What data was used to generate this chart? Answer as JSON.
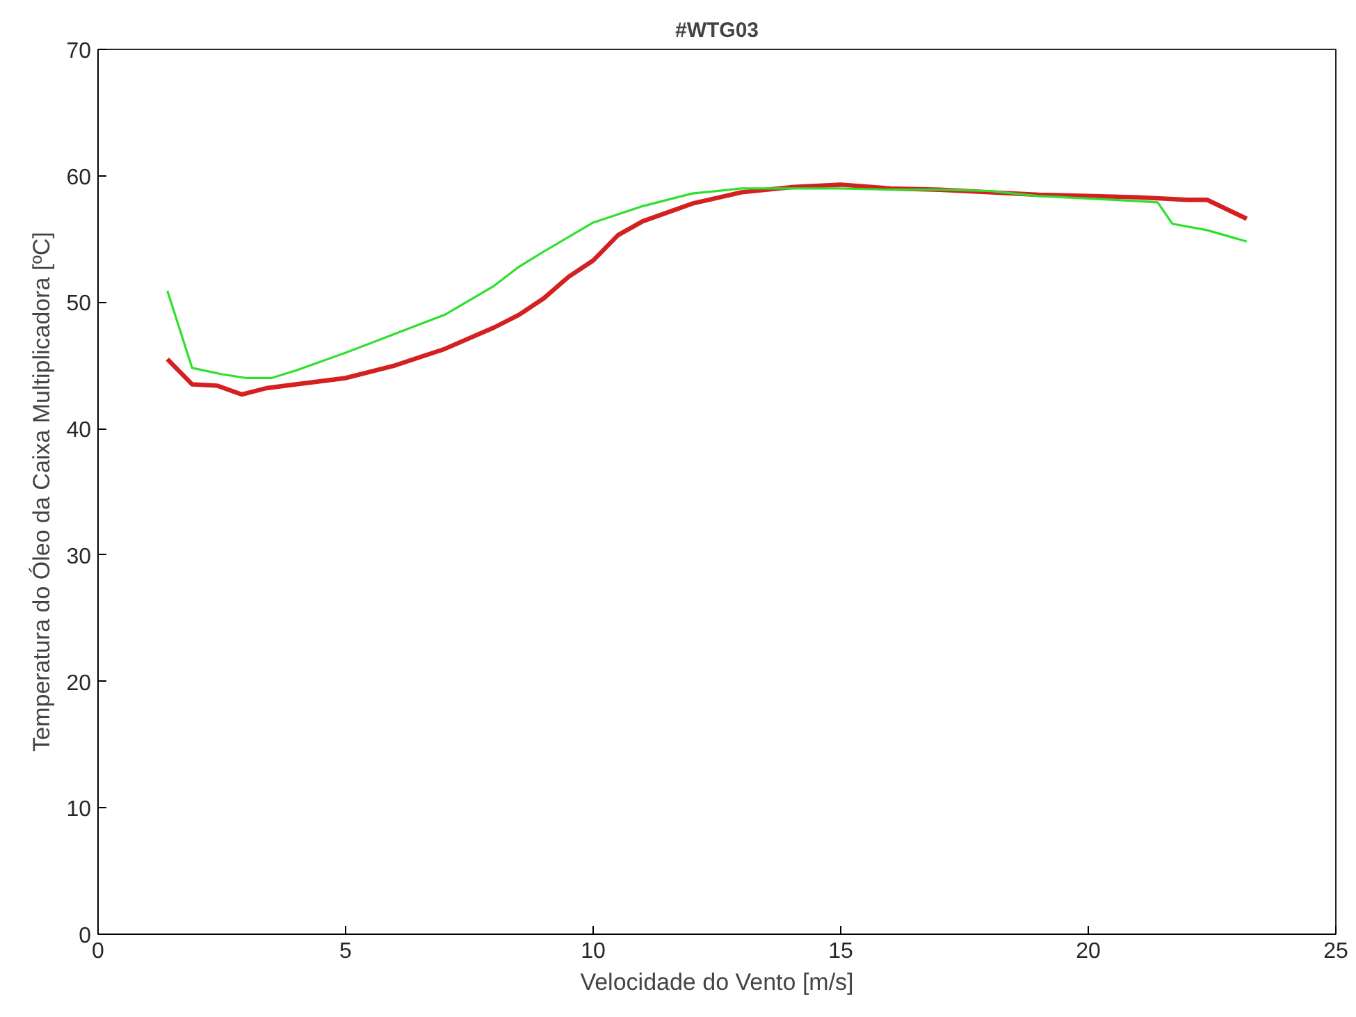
{
  "chart_data": {
    "type": "line",
    "title": "#WTG03",
    "xlabel": "Velocidade do Vento [m/s]",
    "ylabel": "Temperatura do Óleo da Caixa Multiplicadora [ºC]",
    "xlim": [
      0,
      25
    ],
    "xticks": [
      0,
      5,
      10,
      15,
      20,
      25
    ],
    "ylim": [
      0,
      70
    ],
    "yticks": [
      0,
      10,
      20,
      30,
      40,
      50,
      60,
      70
    ],
    "grid": false,
    "series": [
      {
        "color": "#d42020",
        "x": [
          1.4,
          1.9,
          2.4,
          2.9,
          3.4,
          4,
          5,
          6,
          7,
          8,
          8.5,
          9,
          9.5,
          10,
          10.5,
          11,
          12,
          13,
          14,
          15,
          16,
          17,
          18,
          19,
          20,
          21,
          22,
          22.4,
          23.2
        ],
        "values": [
          45.5,
          43.5,
          43.4,
          42.7,
          43.2,
          43.5,
          44,
          45,
          46.3,
          48,
          49,
          50.3,
          52,
          53.3,
          55.3,
          56.4,
          57.8,
          58.7,
          59.1,
          59.3,
          59,
          58.9,
          58.7,
          58.5,
          58.4,
          58.3,
          58.1,
          58.1,
          56.6
        ]
      },
      {
        "color": "#2ee02e",
        "x": [
          1.4,
          1.9,
          2.5,
          3,
          3.5,
          4,
          5,
          6,
          7,
          8,
          8.5,
          9,
          10,
          11,
          12,
          13,
          14,
          15,
          16,
          17,
          18,
          19,
          20,
          21,
          21.4,
          21.7,
          22.4,
          23.2
        ],
        "values": [
          50.9,
          44.8,
          44.3,
          44,
          44,
          44.6,
          46,
          47.5,
          49,
          51.3,
          52.8,
          54,
          56.3,
          57.6,
          58.6,
          59,
          59,
          59,
          58.9,
          58.9,
          58.8,
          58.4,
          58.2,
          58,
          57.9,
          56.2,
          55.7,
          54.8
        ]
      }
    ]
  }
}
